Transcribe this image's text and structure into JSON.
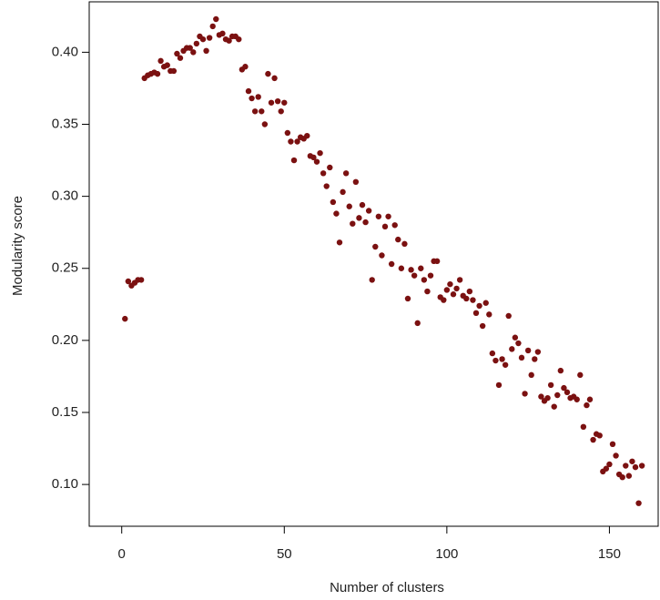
{
  "chart_data": {
    "type": "scatter",
    "x_label": "Number of clusters",
    "y_label": "Modularity score",
    "color": "#7b1111",
    "x": [
      1,
      2,
      3,
      4,
      5,
      6,
      7,
      8,
      9,
      10,
      11,
      12,
      13,
      14,
      15,
      16,
      17,
      18,
      19,
      20,
      21,
      22,
      23,
      24,
      25,
      26,
      27,
      28,
      29,
      30,
      31,
      32,
      33,
      34,
      35,
      36,
      37,
      38,
      39,
      40,
      41,
      42,
      43,
      44,
      45,
      46,
      47,
      48,
      49,
      50,
      51,
      52,
      53,
      54,
      55,
      56,
      57,
      58,
      59,
      60,
      61,
      62,
      63,
      64,
      65,
      66,
      67,
      68,
      69,
      70,
      71,
      72,
      73,
      74,
      75,
      76,
      77,
      78,
      79,
      80,
      81,
      82,
      83,
      84,
      85,
      86,
      87,
      88,
      89,
      90,
      91,
      92,
      93,
      94,
      95,
      96,
      97,
      98,
      99,
      100,
      101,
      102,
      103,
      104,
      105,
      106,
      107,
      108,
      109,
      110,
      111,
      112,
      113,
      114,
      115,
      116,
      117,
      118,
      119,
      120,
      121,
      122,
      123,
      124,
      125,
      126,
      127,
      128,
      129,
      130,
      131,
      132,
      133,
      134,
      135,
      136,
      137,
      138,
      139,
      140,
      141,
      142,
      143,
      144,
      145,
      146,
      147,
      148,
      149,
      150,
      151,
      152,
      153,
      154,
      155,
      156,
      157,
      158,
      159,
      160
    ],
    "y": [
      0.215,
      0.241,
      0.238,
      0.24,
      0.242,
      0.242,
      0.382,
      0.384,
      0.385,
      0.386,
      0.385,
      0.394,
      0.39,
      0.391,
      0.387,
      0.387,
      0.399,
      0.396,
      0.401,
      0.403,
      0.403,
      0.4,
      0.406,
      0.411,
      0.409,
      0.401,
      0.41,
      0.418,
      0.423,
      0.412,
      0.413,
      0.409,
      0.408,
      0.411,
      0.411,
      0.409,
      0.388,
      0.39,
      0.373,
      0.368,
      0.359,
      0.369,
      0.359,
      0.35,
      0.385,
      0.365,
      0.382,
      0.366,
      0.359,
      0.365,
      0.344,
      0.338,
      0.325,
      0.338,
      0.341,
      0.34,
      0.342,
      0.328,
      0.327,
      0.324,
      0.33,
      0.316,
      0.307,
      0.32,
      0.296,
      0.288,
      0.268,
      0.303,
      0.316,
      0.293,
      0.281,
      0.31,
      0.285,
      0.294,
      0.282,
      0.29,
      0.242,
      0.265,
      0.286,
      0.259,
      0.279,
      0.286,
      0.253,
      0.28,
      0.27,
      0.25,
      0.267,
      0.229,
      0.249,
      0.245,
      0.212,
      0.25,
      0.242,
      0.234,
      0.245,
      0.255,
      0.255,
      0.23,
      0.228,
      0.235,
      0.239,
      0.232,
      0.236,
      0.242,
      0.231,
      0.229,
      0.234,
      0.228,
      0.219,
      0.224,
      0.21,
      0.226,
      0.218,
      0.191,
      0.186,
      0.169,
      0.187,
      0.183,
      0.217,
      0.194,
      0.202,
      0.198,
      0.188,
      0.163,
      0.193,
      0.176,
      0.187,
      0.192,
      0.161,
      0.158,
      0.16,
      0.169,
      0.154,
      0.162,
      0.179,
      0.167,
      0.164,
      0.16,
      0.161,
      0.159,
      0.176,
      0.14,
      0.155,
      0.159,
      0.131,
      0.135,
      0.134,
      0.109,
      0.111,
      0.114,
      0.128,
      0.12,
      0.107,
      0.105,
      0.113,
      0.106,
      0.116,
      0.112,
      0.087,
      0.113
    ],
    "xlim": [
      -10,
      165
    ],
    "xticks": [
      0,
      50,
      100,
      150
    ],
    "ylim": [
      0.071,
      0.435
    ],
    "yticks": [
      {
        "value": 0.1,
        "label": "0.10"
      },
      0.15,
      {
        "value": 0.2,
        "label": "0.20"
      },
      0.25,
      {
        "value": 0.3,
        "label": "0.30"
      },
      0.35,
      {
        "value": 0.4,
        "label": "0.40"
      }
    ]
  }
}
